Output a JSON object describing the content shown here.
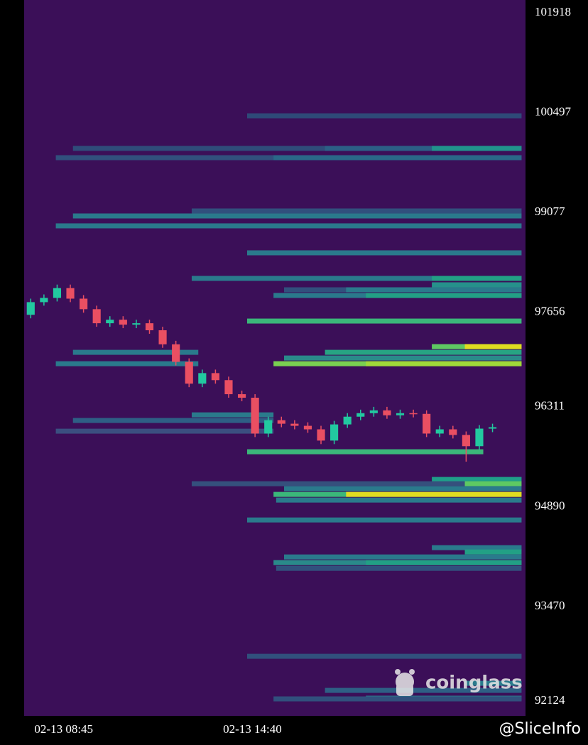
{
  "chart_data": {
    "type": "candlestick",
    "ylim": [
      91912,
      102100
    ],
    "yticks": [
      92124,
      93470,
      94890,
      96311,
      97656,
      99077,
      100497,
      101918
    ],
    "xlim": [
      -0.5,
      37.5
    ],
    "xticks": [
      {
        "value": 2.5,
        "label": "02-13 08:45"
      },
      {
        "value": 16.8,
        "label": "02-13 14:40"
      }
    ],
    "up_color": "#22c9a0",
    "down_color": "#ea4f62",
    "background": "#3b0f58",
    "open": [
      97620,
      97800,
      97860,
      98000,
      97850,
      97700,
      97500,
      97550,
      97480,
      97500,
      97400,
      97200,
      96950,
      96640,
      96790,
      96690,
      96490,
      96440,
      95930,
      96120,
      96070,
      96040,
      95990,
      95830,
      96060,
      96170,
      96220,
      96260,
      96190,
      96220,
      96210,
      95930,
      95990,
      95910,
      95750,
      96000
    ],
    "high": [
      97850,
      97910,
      98050,
      98050,
      97900,
      97750,
      97600,
      97600,
      97550,
      97550,
      97450,
      97250,
      97000,
      96840,
      96840,
      96740,
      96540,
      96490,
      96170,
      96170,
      96120,
      96090,
      96040,
      96110,
      96220,
      96270,
      96310,
      96310,
      96270,
      96270,
      96260,
      96040,
      96040,
      95960,
      96050,
      96070
    ],
    "low": [
      97570,
      97750,
      97810,
      97800,
      97650,
      97450,
      97450,
      97430,
      97430,
      97350,
      97150,
      96900,
      96590,
      96590,
      96640,
      96440,
      96390,
      95880,
      95880,
      96020,
      95990,
      95940,
      95780,
      95780,
      96010,
      96120,
      96170,
      96140,
      96140,
      96160,
      95880,
      95880,
      95860,
      95530,
      95700,
      95950
    ],
    "close": [
      97800,
      97860,
      98000,
      97850,
      97700,
      97500,
      97550,
      97480,
      97500,
      97400,
      97200,
      96950,
      96640,
      96790,
      96690,
      96490,
      96440,
      95930,
      96120,
      96070,
      96040,
      95990,
      95830,
      96060,
      96170,
      96220,
      96260,
      96190,
      96220,
      96210,
      95930,
      95990,
      95910,
      95750,
      96000,
      96020
    ],
    "bands": [
      {
        "price": 100452,
        "start": 16.4,
        "end": 37.2,
        "color": "#2e4a78"
      },
      {
        "price": 99988,
        "start": 3.2,
        "end": 37.2,
        "color": "#2f4c7a"
      },
      {
        "price": 99988,
        "start": 22.3,
        "end": 37.2,
        "color": "#2c5f86"
      },
      {
        "price": 99988,
        "start": 30.4,
        "end": 37.2,
        "color": "#21938c"
      },
      {
        "price": 99856,
        "start": 1.9,
        "end": 37.2,
        "color": "#31507d"
      },
      {
        "price": 99856,
        "start": 18.4,
        "end": 37.2,
        "color": "#2a6888"
      },
      {
        "price": 99098,
        "start": 12.2,
        "end": 37.2,
        "color": "#31507d"
      },
      {
        "price": 99027,
        "start": 3.2,
        "end": 37.2,
        "color": "#2a7a8c"
      },
      {
        "price": 98886,
        "start": 1.9,
        "end": 37.2,
        "color": "#2a7a8c"
      },
      {
        "price": 98502,
        "start": 16.4,
        "end": 37.2,
        "color": "#2a7a8c"
      },
      {
        "price": 98138,
        "start": 12.2,
        "end": 37.2,
        "color": "#2a7a8c"
      },
      {
        "price": 98138,
        "start": 30.4,
        "end": 37.2,
        "color": "#22a085"
      },
      {
        "price": 98047,
        "start": 30.4,
        "end": 37.2,
        "color": "#26918b"
      },
      {
        "price": 97976,
        "start": 19.2,
        "end": 37.2,
        "color": "#31507d"
      },
      {
        "price": 97976,
        "start": 23.9,
        "end": 37.2,
        "color": "#2a7a8c"
      },
      {
        "price": 97895,
        "start": 18.4,
        "end": 37.2,
        "color": "#2a7a8c"
      },
      {
        "price": 97895,
        "start": 25.4,
        "end": 37.2,
        "color": "#22a085"
      },
      {
        "price": 97531,
        "start": 16.4,
        "end": 37.2,
        "color": "#3bb77a"
      },
      {
        "price": 97167,
        "start": 30.4,
        "end": 37.2,
        "color": "#5ec962"
      },
      {
        "price": 97167,
        "start": 32.9,
        "end": 37.2,
        "color": "#e0dd20"
      },
      {
        "price": 97086,
        "start": 3.2,
        "end": 12.7,
        "color": "#2a7a8c"
      },
      {
        "price": 97086,
        "start": 22.3,
        "end": 37.2,
        "color": "#27a483"
      },
      {
        "price": 97005,
        "start": 19.2,
        "end": 37.2,
        "color": "#2a8a8a"
      },
      {
        "price": 96924,
        "start": 1.9,
        "end": 12.7,
        "color": "#2a7a8c"
      },
      {
        "price": 96924,
        "start": 18.4,
        "end": 37.2,
        "color": "#7ad151"
      },
      {
        "price": 96924,
        "start": 25.4,
        "end": 37.2,
        "color": "#a0da39"
      },
      {
        "price": 96196,
        "start": 12.2,
        "end": 18.4,
        "color": "#2a7a8c"
      },
      {
        "price": 96116,
        "start": 3.2,
        "end": 18.4,
        "color": "#2e5f85"
      },
      {
        "price": 95964,
        "start": 1.9,
        "end": 18.4,
        "color": "#3b4f80"
      },
      {
        "price": 95671,
        "start": 16.4,
        "end": 34.3,
        "color": "#3bb77a"
      },
      {
        "price": 95277,
        "start": 30.4,
        "end": 37.2,
        "color": "#1f9e89"
      },
      {
        "price": 95216,
        "start": 12.2,
        "end": 37.2,
        "color": "#35507d"
      },
      {
        "price": 95216,
        "start": 32.9,
        "end": 37.2,
        "color": "#5ec962"
      },
      {
        "price": 95145,
        "start": 19.2,
        "end": 37.2,
        "color": "#2a7a8c"
      },
      {
        "price": 95064,
        "start": 18.4,
        "end": 37.2,
        "color": "#3bb77a"
      },
      {
        "price": 95064,
        "start": 23.9,
        "end": 37.2,
        "color": "#e0dd20"
      },
      {
        "price": 94983,
        "start": 18.6,
        "end": 37.2,
        "color": "#2a7a8c"
      },
      {
        "price": 94700,
        "start": 16.4,
        "end": 37.2,
        "color": "#2a7a8c"
      },
      {
        "price": 94306,
        "start": 30.4,
        "end": 37.2,
        "color": "#2a7a8c"
      },
      {
        "price": 94245,
        "start": 32.9,
        "end": 37.2,
        "color": "#22a085"
      },
      {
        "price": 94174,
        "start": 19.2,
        "end": 37.2,
        "color": "#2a7a8c"
      },
      {
        "price": 94093,
        "start": 18.4,
        "end": 37.2,
        "color": "#2a8a8a"
      },
      {
        "price": 94093,
        "start": 25.4,
        "end": 37.2,
        "color": "#22a085"
      },
      {
        "price": 94012,
        "start": 18.6,
        "end": 37.2,
        "color": "#31507d"
      },
      {
        "price": 92760,
        "start": 16.4,
        "end": 37.2,
        "color": "#31507d"
      },
      {
        "price": 92376,
        "start": 32.9,
        "end": 37.2,
        "color": "#2a7a8c"
      },
      {
        "price": 92275,
        "start": 22.3,
        "end": 37.2,
        "color": "#2e5f85"
      },
      {
        "price": 92164,
        "start": 25.4,
        "end": 37.2,
        "color": "#2a7a8c"
      },
      {
        "price": 92154,
        "start": 18.4,
        "end": 37.2,
        "color": "#31507d"
      }
    ],
    "watermark": "coinglass",
    "credit": "@SliceInfo"
  }
}
